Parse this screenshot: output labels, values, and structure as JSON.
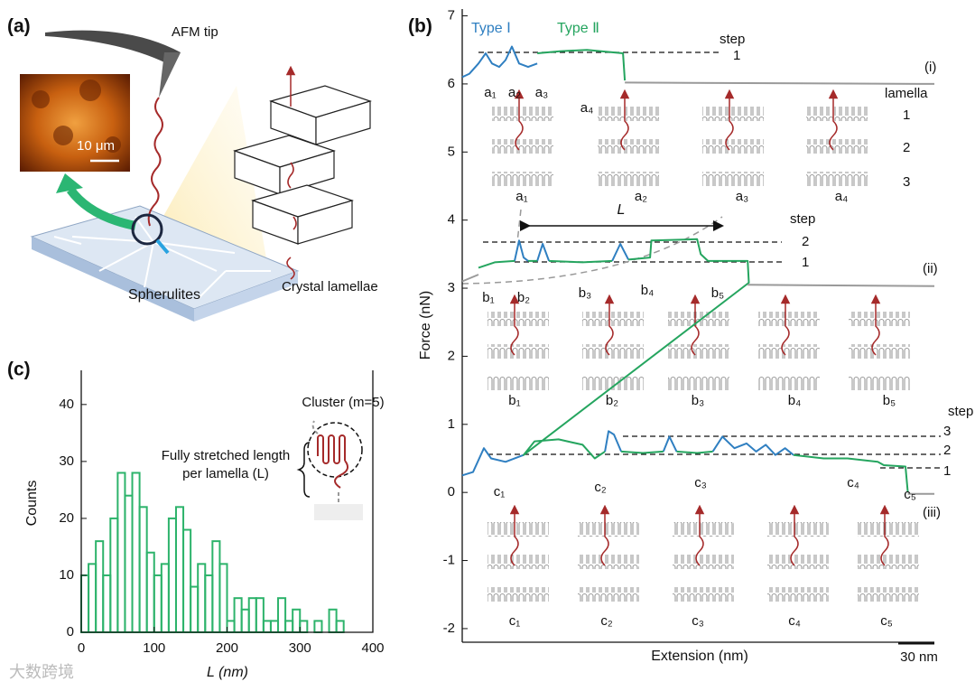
{
  "panel_a": {
    "panel_label": "(a)",
    "labels": [
      "AFM tip",
      "10 μm",
      "Spherulites",
      "Crystal lamellae"
    ]
  },
  "watermark": "大数跨境",
  "chart_data": [
    {
      "type": "line",
      "panel_label": "(b)",
      "y_label": "Force (nN)",
      "x_label": "Extension (nm)",
      "xlim": [
        0,
        392
      ],
      "ylim": [
        -2.2,
        7.1
      ],
      "yticks": [
        -2,
        -1,
        0,
        1,
        2,
        3,
        4,
        5,
        6,
        7
      ],
      "series": [
        {
          "name": "Type Ⅰ",
          "color": "#2f7fc1",
          "x": [
            0,
            6,
            13.5,
            19.5,
            24.75,
            30.75,
            36,
            41.25,
            47.25,
            54.75,
            62.25,
            63,
            43.5,
            47.25,
            51,
            54.75,
            56,
            62.25,
            66.75,
            72,
            73,
            124.5,
            131.25,
            138,
            139,
            0,
            9,
            18,
            24,
            36,
            51,
            52,
            118.5,
            121.5,
            126,
            132,
            133,
            167,
            172,
            178,
            179,
            208,
            216,
            226,
            236,
            244,
            252,
            260,
            268,
            275
          ],
          "values": [
            6.1,
            6.15,
            6.3,
            6.45,
            6.3,
            6.25,
            6.35,
            6.55,
            6.3,
            6.25,
            6.3,
            null,
            3.4,
            3.7,
            3.45,
            3.4,
            null,
            3.4,
            3.65,
            3.4,
            null,
            3.4,
            3.65,
            3.42,
            null,
            0.25,
            0.3,
            0.65,
            0.5,
            0.45,
            0.55,
            null,
            0.6,
            0.9,
            0.85,
            0.6,
            null,
            0.6,
            0.82,
            0.6,
            null,
            0.6,
            0.82,
            0.65,
            0.72,
            0.6,
            0.7,
            0.55,
            0.65,
            0.55
          ]
        },
        {
          "name": "Type Ⅱ",
          "color": "#25a55f",
          "x": [
            62.25,
            81,
            103.5,
            133.5,
            135,
            136,
            13.5,
            27,
            43.5,
            44,
            54.75,
            62.25,
            63,
            72,
            100,
            124.5,
            125,
            138,
            156,
            157,
            195,
            198,
            204,
            237,
            238,
            51,
            60,
            80,
            100,
            110,
            118.5,
            119,
            132,
            150,
            167,
            168,
            178,
            195,
            208,
            209,
            275,
            300,
            320,
            345,
            350,
            368,
            370
          ],
          "values": [
            6.45,
            6.48,
            6.5,
            6.45,
            6.05,
            null,
            3.3,
            3.38,
            3.4,
            null,
            3.4,
            3.4,
            null,
            3.4,
            3.38,
            3.4,
            null,
            3.42,
            3.45,
            3.7,
            3.72,
            3.5,
            3.4,
            3.4,
            3.08,
            0.55,
            0.75,
            0.78,
            0.7,
            0.5,
            0.6,
            null,
            0.6,
            0.58,
            0.6,
            null,
            0.6,
            0.58,
            0.6,
            null,
            0.55,
            0.5,
            0.5,
            0.45,
            0.4,
            0.38,
            0.0
          ]
        },
        {
          "color": "#9a9a9a",
          "x": [
            0,
            13.5,
            14,
            135,
            392,
            393,
            237,
            392,
            393,
            370,
            392
          ],
          "values": [
            3.1,
            3.2,
            null,
            6.02,
            6.0,
            null,
            3.05,
            3.03,
            null,
            -0.02,
            -0.02
          ]
        }
      ],
      "scale_bar": {
        "value": 30,
        "label": "30 nm"
      },
      "annotations": [
        "step",
        "1",
        "(i)",
        "lamella",
        "1",
        "2",
        "3",
        "L",
        "step",
        "2",
        "1",
        "(ii)",
        "step",
        "3",
        "2",
        "1",
        "(iii)"
      ],
      "point_labels": [
        "a₁",
        "a₂",
        "a₃",
        "a₄",
        "b₁",
        "b₂",
        "b₃",
        "b₄",
        "b₅",
        "c₁",
        "c₂",
        "c₃",
        "c₄",
        "c₅"
      ],
      "schematic_labels": [
        "a₁",
        "a₂",
        "a₃",
        "a₄",
        "b₁",
        "b₂",
        "b₃",
        "b₄",
        "b₅",
        "c₁",
        "c₂",
        "c₃",
        "c₄",
        "c₅"
      ]
    },
    {
      "type": "histogram",
      "panel_label": "(c)",
      "x_label": "L (nm)",
      "y_label": "Counts",
      "bins": [
        0,
        10,
        20,
        30,
        40,
        50,
        60,
        70,
        80,
        90,
        100,
        110,
        120,
        130,
        140,
        150,
        160,
        170,
        180,
        190,
        200,
        210,
        220,
        230,
        240,
        250,
        260,
        270,
        280,
        290,
        300,
        310,
        320,
        330,
        340,
        350,
        360
      ],
      "values": [
        10,
        12,
        16,
        10,
        20,
        28,
        24,
        28,
        22,
        14,
        10,
        12,
        20,
        22,
        18,
        8,
        12,
        10,
        16,
        12,
        2,
        6,
        4,
        6,
        6,
        2,
        2,
        6,
        2,
        4,
        2,
        0,
        2,
        0,
        4,
        2
      ],
      "color": "#2db36b",
      "xlim": [
        0,
        400
      ],
      "ylim": [
        0,
        46
      ],
      "xticks": [
        0,
        100,
        200,
        300,
        400
      ],
      "yticks": [
        0,
        10,
        20,
        30,
        40
      ],
      "annotations": [
        "Cluster (m=5)",
        "Fully stretched length",
        "per lamella (L)"
      ]
    }
  ]
}
